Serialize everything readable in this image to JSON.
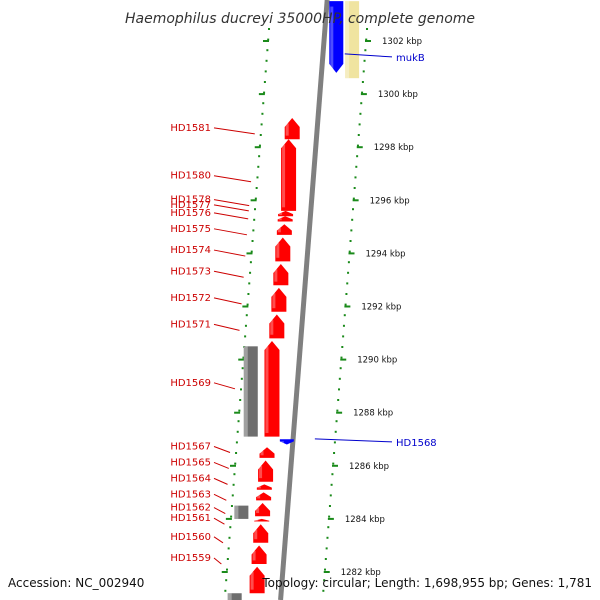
{
  "title": "Haemophilus ducreyi 35000HP, complete genome",
  "accession": "Accession: NC_002940",
  "summary": "Topology: circular; Length: 1,698,955 bp; Genes: 1,781",
  "colors": {
    "forward_cds": "#ff0000",
    "reverse_cds": "#0000ff",
    "pseudo": "#6e6e6e",
    "other": "#f0e4a0",
    "backbone": "#808080",
    "tick": "#1a8a1a",
    "label_left": "#cc0000",
    "label_right": "#0000cc"
  },
  "scale": [
    {
      "label": "1302 kbp",
      "pos_kbp": 1302
    },
    {
      "label": "1300 kbp",
      "pos_kbp": 1300
    },
    {
      "label": "1298 kbp",
      "pos_kbp": 1298
    },
    {
      "label": "1296 kbp",
      "pos_kbp": 1296
    },
    {
      "label": "1294 kbp",
      "pos_kbp": 1294
    },
    {
      "label": "1292 kbp",
      "pos_kbp": 1292
    },
    {
      "label": "1290 kbp",
      "pos_kbp": 1290
    },
    {
      "label": "1288 kbp",
      "pos_kbp": 1288
    },
    {
      "label": "1286 kbp",
      "pos_kbp": 1286
    },
    {
      "label": "1284 kbp",
      "pos_kbp": 1284
    },
    {
      "label": "1282 kbp",
      "pos_kbp": 1282
    }
  ],
  "right_labels": [
    {
      "name": "mukB",
      "pos_kbp": 1301.4
    },
    {
      "name": "HD1568",
      "pos_kbp": 1286.9
    }
  ],
  "left_labels": [
    {
      "name": "HD1581",
      "pos_kbp": 1298.5
    },
    {
      "name": "HD1580",
      "pos_kbp": 1296.7
    },
    {
      "name": "HD1578",
      "pos_kbp": 1295.8
    },
    {
      "name": "HD1577",
      "pos_kbp": 1295.6
    },
    {
      "name": "HD1576",
      "pos_kbp": 1295.3
    },
    {
      "name": "HD1575",
      "pos_kbp": 1294.7
    },
    {
      "name": "HD1574",
      "pos_kbp": 1293.9
    },
    {
      "name": "HD1573",
      "pos_kbp": 1293.1
    },
    {
      "name": "HD1572",
      "pos_kbp": 1292.1
    },
    {
      "name": "HD1571",
      "pos_kbp": 1291.1
    },
    {
      "name": "HD1569",
      "pos_kbp": 1288.9
    },
    {
      "name": "HD1567",
      "pos_kbp": 1286.5
    },
    {
      "name": "HD1565",
      "pos_kbp": 1285.9
    },
    {
      "name": "HD1564",
      "pos_kbp": 1285.3
    },
    {
      "name": "HD1563",
      "pos_kbp": 1284.7
    },
    {
      "name": "HD1562",
      "pos_kbp": 1284.2
    },
    {
      "name": "HD1561",
      "pos_kbp": 1283.8
    },
    {
      "name": "HD1560",
      "pos_kbp": 1283.1
    },
    {
      "name": "HD1559",
      "pos_kbp": 1282.3
    }
  ],
  "features": [
    {
      "track": "reverse",
      "start_kbp": 1300.8,
      "end_kbp": 1303.5,
      "strand": -1,
      "kind": "cds"
    },
    {
      "track": "other",
      "start_kbp": 1300.6,
      "end_kbp": 1303.5,
      "strand": 0,
      "kind": "other"
    },
    {
      "track": "forward",
      "start_kbp": 1298.3,
      "end_kbp": 1299.1,
      "strand": 1,
      "kind": "cds"
    },
    {
      "track": "forward",
      "start_kbp": 1295.6,
      "end_kbp": 1298.3,
      "strand": 1,
      "kind": "cds"
    },
    {
      "track": "forward",
      "start_kbp": 1295.4,
      "end_kbp": 1295.6,
      "strand": 1,
      "kind": "cds"
    },
    {
      "track": "forward",
      "start_kbp": 1295.2,
      "end_kbp": 1295.4,
      "strand": 1,
      "kind": "cds"
    },
    {
      "track": "forward",
      "start_kbp": 1294.7,
      "end_kbp": 1295.1,
      "strand": 1,
      "kind": "cds"
    },
    {
      "track": "forward",
      "start_kbp": 1293.7,
      "end_kbp": 1294.6,
      "strand": 1,
      "kind": "cds"
    },
    {
      "track": "forward",
      "start_kbp": 1292.8,
      "end_kbp": 1293.6,
      "strand": 1,
      "kind": "cds"
    },
    {
      "track": "forward",
      "start_kbp": 1291.8,
      "end_kbp": 1292.7,
      "strand": 1,
      "kind": "cds"
    },
    {
      "track": "forward",
      "start_kbp": 1290.8,
      "end_kbp": 1291.7,
      "strand": 1,
      "kind": "cds"
    },
    {
      "track": "forward",
      "start_kbp": 1287.1,
      "end_kbp": 1290.7,
      "strand": 1,
      "kind": "cds"
    },
    {
      "track": "pseudo",
      "start_kbp": 1287.1,
      "end_kbp": 1290.5,
      "strand": 0,
      "kind": "pseudo"
    },
    {
      "track": "reverse2",
      "start_kbp": 1286.8,
      "end_kbp": 1287.0,
      "strand": -1,
      "kind": "cds"
    },
    {
      "track": "forward",
      "start_kbp": 1286.3,
      "end_kbp": 1286.7,
      "strand": 1,
      "kind": "cds"
    },
    {
      "track": "forward",
      "start_kbp": 1285.4,
      "end_kbp": 1286.2,
      "strand": 1,
      "kind": "cds"
    },
    {
      "track": "forward",
      "start_kbp": 1285.1,
      "end_kbp": 1285.3,
      "strand": 1,
      "kind": "cds"
    },
    {
      "track": "forward",
      "start_kbp": 1284.7,
      "end_kbp": 1285.0,
      "strand": 1,
      "kind": "cds"
    },
    {
      "track": "forward",
      "start_kbp": 1284.1,
      "end_kbp": 1284.6,
      "strand": 1,
      "kind": "cds"
    },
    {
      "track": "pseudo",
      "start_kbp": 1284.0,
      "end_kbp": 1284.5,
      "strand": 0,
      "kind": "pseudo"
    },
    {
      "track": "forward",
      "start_kbp": 1283.9,
      "end_kbp": 1284.0,
      "strand": 1,
      "kind": "cds"
    },
    {
      "track": "forward",
      "start_kbp": 1283.1,
      "end_kbp": 1283.8,
      "strand": 1,
      "kind": "cds"
    },
    {
      "track": "forward",
      "start_kbp": 1282.3,
      "end_kbp": 1283.0,
      "strand": 1,
      "kind": "cds"
    },
    {
      "track": "forward",
      "start_kbp": 1281.2,
      "end_kbp": 1282.2,
      "strand": 1,
      "kind": "cds"
    },
    {
      "track": "pseudo",
      "start_kbp": 1280.8,
      "end_kbp": 1281.2,
      "strand": 0,
      "kind": "pseudo"
    }
  ]
}
